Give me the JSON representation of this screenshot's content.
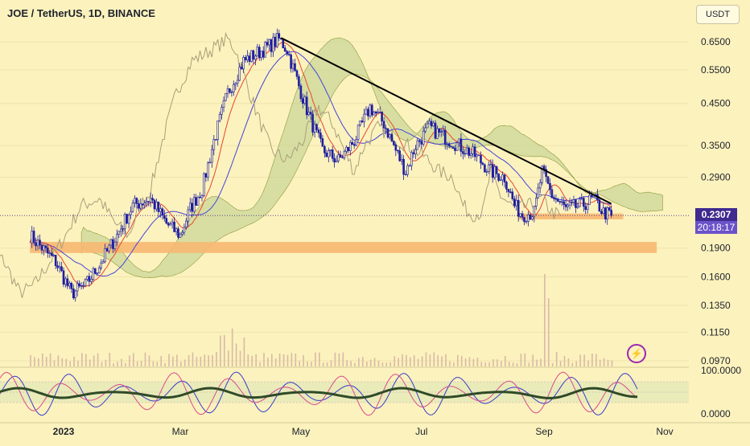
{
  "header": {
    "title": "JOE / TetherUS, 1D, BINANCE",
    "currency_label": "USDT"
  },
  "badges": {
    "last_price": "0.2307",
    "countdown": "20:18:17"
  },
  "colors": {
    "background": "#fcf2bd",
    "candle": "#1f1fa0",
    "trendline": "#000000",
    "zone": "#f7b871",
    "cloud": "#bfd18e",
    "conversion_line": "#e8462f",
    "base_line": "#4444dd",
    "lagging_span": "#a89f7c",
    "volume": "#d9b9a8",
    "stoch_k": "#3a3acc",
    "stoch_d": "#d94a8c",
    "stoch_main": "#2f4a27"
  },
  "icons": {
    "alert": "lightning-icon"
  },
  "chart_data": {
    "type": "candlestick",
    "symbol": "JOE / TetherUS",
    "interval": "1D",
    "exchange": "BINANCE",
    "scale": "log",
    "y_ticks": [
      "0.6500",
      "0.5500",
      "0.4500",
      "0.3500",
      "0.2900",
      "0.1900",
      "0.1600",
      "0.1350",
      "0.1150",
      "0.0970"
    ],
    "x_ticks": [
      "2023",
      "Mar",
      "May",
      "Jul",
      "Sep",
      "Nov"
    ],
    "last_price": 0.2307,
    "price_path": [
      [
        "2022-12-15",
        0.205
      ],
      [
        "2022-12-28",
        0.175
      ],
      [
        "2023-01-05",
        0.145
      ],
      [
        "2023-01-12",
        0.152
      ],
      [
        "2023-01-20",
        0.175
      ],
      [
        "2023-01-28",
        0.205
      ],
      [
        "2023-02-05",
        0.245
      ],
      [
        "2023-02-14",
        0.255
      ],
      [
        "2023-02-22",
        0.22
      ],
      [
        "2023-03-01",
        0.205
      ],
      [
        "2023-03-06",
        0.24
      ],
      [
        "2023-03-12",
        0.27
      ],
      [
        "2023-03-18",
        0.36
      ],
      [
        "2023-03-25",
        0.48
      ],
      [
        "2023-04-02",
        0.58
      ],
      [
        "2023-04-12",
        0.62
      ],
      [
        "2023-04-20",
        0.66
      ],
      [
        "2023-04-24",
        0.62
      ],
      [
        "2023-04-30",
        0.5
      ],
      [
        "2023-05-05",
        0.42
      ],
      [
        "2023-05-12",
        0.34
      ],
      [
        "2023-05-20",
        0.32
      ],
      [
        "2023-05-28",
        0.36
      ],
      [
        "2023-06-05",
        0.44
      ],
      [
        "2023-06-12",
        0.4
      ],
      [
        "2023-06-18",
        0.34
      ],
      [
        "2023-06-23",
        0.3
      ],
      [
        "2023-06-28",
        0.35
      ],
      [
        "2023-07-05",
        0.39
      ],
      [
        "2023-07-12",
        0.37
      ],
      [
        "2023-07-20",
        0.35
      ],
      [
        "2023-07-28",
        0.33
      ],
      [
        "2023-08-05",
        0.3
      ],
      [
        "2023-08-12",
        0.29
      ],
      [
        "2023-08-17",
        0.245
      ],
      [
        "2023-08-21",
        0.232
      ],
      [
        "2023-08-27",
        0.235
      ],
      [
        "2023-08-31",
        0.3
      ],
      [
        "2023-09-05",
        0.26
      ],
      [
        "2023-09-12",
        0.24
      ],
      [
        "2023-09-20",
        0.245
      ],
      [
        "2023-09-26",
        0.255
      ],
      [
        "2023-10-01",
        0.235
      ],
      [
        "2023-10-05",
        0.2307
      ]
    ],
    "trendline": [
      [
        "2023-04-21",
        0.665
      ],
      [
        "2023-10-05",
        0.2475
      ]
    ],
    "support_zones": [
      {
        "from": "2022-12-15",
        "to": "2023-10-28",
        "low": 0.1845,
        "high": 0.197
      },
      {
        "from": "2023-08-19",
        "to": "2023-10-11",
        "low": 0.2255,
        "high": 0.2335
      }
    ],
    "stochastic": {
      "y_ticks": [
        "100.0000",
        "0.0000"
      ]
    }
  }
}
